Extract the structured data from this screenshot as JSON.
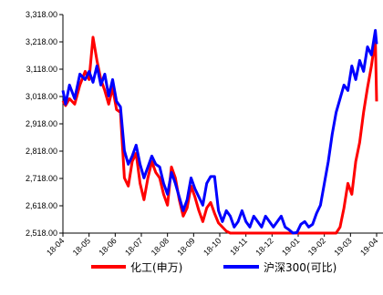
{
  "chart_data": {
    "type": "line",
    "title": "",
    "xlabel": "",
    "ylabel": "",
    "ylim": [
      2518,
      3318
    ],
    "yticks": [
      "3,318.00",
      "3,218.00",
      "3,118.00",
      "3,018.00",
      "2,918.00",
      "2,818.00",
      "2,718.00",
      "2,618.00",
      "2,518.00"
    ],
    "ytick_values": [
      3318,
      3218,
      3118,
      3018,
      2918,
      2818,
      2718,
      2618,
      2518
    ],
    "xticks": [
      "18-04",
      "18-05",
      "18-06",
      "18-07",
      "18-08",
      "18-09",
      "18-10",
      "18-11",
      "18-12",
      "19-01",
      "19-02",
      "19-03",
      "19-04"
    ],
    "legend_position": "bottom",
    "grid": false,
    "series": [
      {
        "name": "化工(申万)",
        "color": "#ff0000",
        "x": [
          0.0,
          0.1,
          0.25,
          0.45,
          0.65,
          0.85,
          1.0,
          1.15,
          1.3,
          1.45,
          1.6,
          1.75,
          1.9,
          2.05,
          2.2,
          2.35,
          2.5,
          2.65,
          2.8,
          2.95,
          3.1,
          3.25,
          3.4,
          3.55,
          3.7,
          3.85,
          4.0,
          4.15,
          4.3,
          4.45,
          4.6,
          4.75,
          4.9,
          5.05,
          5.2,
          5.35,
          5.5,
          5.65,
          5.8,
          5.95,
          6.1,
          6.25,
          6.4,
          6.55,
          6.7,
          6.85,
          7.0,
          7.15,
          7.3,
          7.45,
          7.6,
          7.75,
          7.9,
          8.05,
          8.2,
          8.35,
          8.5,
          8.65,
          8.8,
          8.95,
          9.1,
          9.25,
          9.4,
          9.55,
          9.7,
          9.85,
          10.0,
          10.15,
          10.3,
          10.45,
          10.6,
          10.75,
          10.9,
          11.05,
          11.2,
          11.35,
          11.5,
          11.65,
          11.8,
          11.95,
          12.0
        ],
        "values": [
          3002,
          2985,
          3010,
          2990,
          3060,
          3110,
          3080,
          3235,
          3150,
          3080,
          3040,
          2990,
          3050,
          2970,
          2960,
          2720,
          2690,
          2780,
          2810,
          2700,
          2640,
          2720,
          2780,
          2740,
          2720,
          2660,
          2620,
          2760,
          2720,
          2640,
          2580,
          2610,
          2690,
          2650,
          2600,
          2560,
          2610,
          2630,
          2590,
          2555,
          2540,
          2525,
          2518,
          2518,
          2518,
          2518,
          2518,
          2518,
          2518,
          2518,
          2518,
          2518,
          2518,
          2518,
          2518,
          2518,
          2518,
          2518,
          2518,
          2518,
          2518,
          2518,
          2518,
          2518,
          2518,
          2518,
          2518,
          2518,
          2518,
          2518,
          2540,
          2610,
          2700,
          2660,
          2780,
          2850,
          2960,
          3050,
          3130,
          3230,
          3000
        ]
      },
      {
        "name": "沪深300(可比)",
        "color": "#0000ff",
        "x": [
          0.0,
          0.1,
          0.25,
          0.45,
          0.65,
          0.85,
          1.0,
          1.15,
          1.3,
          1.45,
          1.6,
          1.75,
          1.9,
          2.05,
          2.2,
          2.35,
          2.5,
          2.65,
          2.8,
          2.95,
          3.1,
          3.25,
          3.4,
          3.55,
          3.7,
          3.85,
          4.0,
          4.15,
          4.3,
          4.45,
          4.6,
          4.75,
          4.9,
          5.05,
          5.2,
          5.35,
          5.5,
          5.65,
          5.8,
          5.95,
          6.1,
          6.25,
          6.4,
          6.55,
          6.7,
          6.85,
          7.0,
          7.15,
          7.3,
          7.45,
          7.6,
          7.75,
          7.9,
          8.05,
          8.2,
          8.35,
          8.5,
          8.65,
          8.8,
          8.95,
          9.1,
          9.25,
          9.4,
          9.55,
          9.7,
          9.85,
          10.0,
          10.15,
          10.3,
          10.45,
          10.6,
          10.75,
          10.9,
          11.05,
          11.2,
          11.35,
          11.5,
          11.65,
          11.8,
          11.95,
          12.0
        ],
        "values": [
          3040,
          2990,
          3060,
          3010,
          3100,
          3080,
          3110,
          3070,
          3130,
          3060,
          3100,
          3020,
          3080,
          3000,
          2980,
          2820,
          2770,
          2800,
          2840,
          2770,
          2720,
          2760,
          2800,
          2770,
          2760,
          2700,
          2660,
          2740,
          2700,
          2650,
          2600,
          2640,
          2720,
          2680,
          2650,
          2620,
          2700,
          2725,
          2725,
          2600,
          2560,
          2600,
          2580,
          2540,
          2560,
          2600,
          2560,
          2540,
          2580,
          2560,
          2540,
          2580,
          2560,
          2540,
          2560,
          2580,
          2540,
          2530,
          2518,
          2520,
          2550,
          2560,
          2540,
          2550,
          2590,
          2620,
          2700,
          2780,
          2880,
          2960,
          3010,
          3060,
          3040,
          3130,
          3080,
          3150,
          3110,
          3200,
          3170,
          3260,
          3210
        ]
      }
    ]
  }
}
